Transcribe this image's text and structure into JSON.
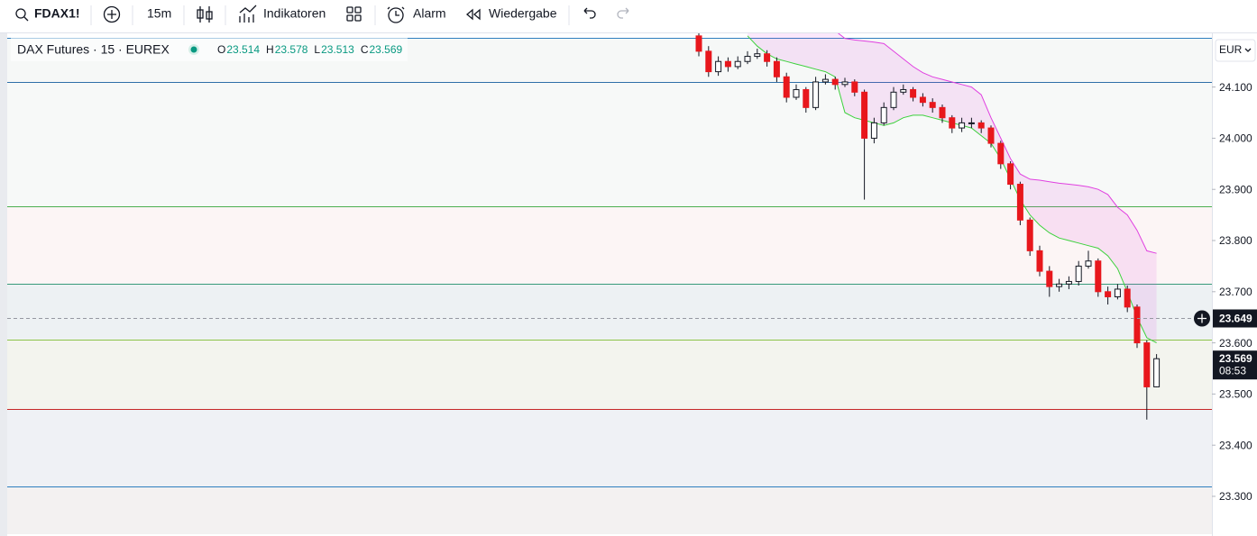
{
  "toolbar": {
    "symbol": "FDAX1!",
    "interval": "15m",
    "indicators": "Indikatoren",
    "alert": "Alarm",
    "replay": "Wiedergabe"
  },
  "legend": {
    "title": "DAX Futures · 15 · EUREX",
    "ohlc": [
      {
        "label": "O",
        "value": "23.514"
      },
      {
        "label": "H",
        "value": "23.578"
      },
      {
        "label": "L",
        "value": "23.513"
      },
      {
        "label": "C",
        "value": "23.569"
      }
    ]
  },
  "currency": "EUR",
  "crosshair": {
    "value": 23649,
    "label": "23.649"
  },
  "last_price": {
    "value": 23569,
    "label": "23.569",
    "countdown": "08:53"
  },
  "chart_data": {
    "type": "candlestick",
    "open": [
      24200,
      24170,
      24130,
      24150,
      24140,
      24150,
      24160,
      24165,
      24150,
      24120,
      24080,
      24095,
      24060,
      24110,
      24115,
      24105,
      24110,
      24090,
      24000,
      24030,
      24060,
      24090,
      24095,
      24080,
      24070,
      24060,
      24040,
      24020,
      24030,
      24030,
      24020,
      23990,
      23950,
      23910,
      23840,
      23780,
      23740,
      23710,
      23715,
      23720,
      23750,
      23760,
      23700,
      23690,
      23705,
      23670,
      23600,
      23514
    ],
    "high": [
      24210,
      24180,
      24160,
      24158,
      24160,
      24170,
      24175,
      24172,
      24158,
      24128,
      24105,
      24100,
      24120,
      24125,
      24120,
      24118,
      24115,
      24095,
      24040,
      24070,
      24100,
      24105,
      24100,
      24088,
      24078,
      24066,
      24045,
      24040,
      24040,
      24035,
      24025,
      23995,
      23955,
      23915,
      23845,
      23790,
      23750,
      23725,
      23730,
      23760,
      23780,
      23765,
      23710,
      23715,
      23712,
      23675,
      23605,
      23578
    ],
    "low": [
      24160,
      24120,
      24122,
      24130,
      24135,
      24145,
      24155,
      24140,
      24110,
      24070,
      24075,
      24050,
      24055,
      24105,
      24095,
      24100,
      24082,
      23880,
      23990,
      24025,
      24055,
      24085,
      24072,
      24062,
      24050,
      24030,
      24010,
      24012,
      24020,
      24010,
      23982,
      23940,
      23900,
      23830,
      23770,
      23730,
      23690,
      23700,
      23705,
      23712,
      23745,
      23690,
      23675,
      23685,
      23660,
      23590,
      23450,
      23513
    ],
    "close": [
      24170,
      24130,
      24150,
      24140,
      24150,
      24160,
      24165,
      24150,
      24120,
      24080,
      24095,
      24060,
      24110,
      24115,
      24105,
      24110,
      24090,
      24000,
      24030,
      24060,
      24090,
      24095,
      24080,
      24070,
      24060,
      24040,
      24020,
      24030,
      24030,
      24020,
      23990,
      23950,
      23910,
      23840,
      23780,
      23740,
      23710,
      23715,
      23720,
      23750,
      23760,
      23700,
      23690,
      23705,
      23670,
      23600,
      23514,
      23569
    ],
    "up_color": "#ffffff",
    "down_color": "#e8171c",
    "upper_band": {
      "color": "#e040e0",
      "values": [
        null,
        null,
        null,
        null,
        null,
        24210,
        24210,
        24210,
        24210,
        24210,
        24210,
        24210,
        24210,
        24210,
        24210,
        24195,
        24192,
        24190,
        24188,
        24185,
        24170,
        24155,
        24140,
        24128,
        24120,
        24115,
        24110,
        24105,
        24100,
        24085,
        24040,
        24000,
        23960,
        23930,
        23920,
        23918,
        23915,
        23912,
        23910,
        23908,
        23905,
        23900,
        23890,
        23865,
        23850,
        23820,
        23780,
        23775
      ]
    },
    "lower_band": {
      "color": "#3cd23c",
      "values": [
        null,
        null,
        null,
        null,
        null,
        24200,
        24180,
        24165,
        24155,
        24150,
        24145,
        24140,
        24135,
        24130,
        24120,
        24050,
        24040,
        24035,
        24030,
        24025,
        24030,
        24040,
        24045,
        24045,
        24040,
        24035,
        24030,
        24025,
        24020,
        24005,
        23990,
        23960,
        23920,
        23880,
        23850,
        23830,
        23815,
        23805,
        23800,
        23795,
        23790,
        23785,
        23770,
        23745,
        23700,
        23650,
        23610,
        23600
      ]
    },
    "levels": [
      24196,
      24110,
      23867,
      23716,
      23607,
      23470,
      23319
    ],
    "level_colors": [
      "#2f7fbf",
      "#2f6fa8",
      "#4caf50",
      "#3a9a7a",
      "#8bc34a",
      "#c62828",
      "#2f7fbf"
    ],
    "ylim": [
      23226,
      24205
    ],
    "yticks": [
      {
        "value": 24100,
        "label": "24.100"
      },
      {
        "value": 24000,
        "label": "24.000"
      },
      {
        "value": 23900,
        "label": "23.900"
      },
      {
        "value": 23800,
        "label": "23.800"
      },
      {
        "value": 23700,
        "label": "23.700"
      },
      {
        "value": 23600,
        "label": "23.600"
      },
      {
        "value": 23500,
        "label": "23.500"
      },
      {
        "value": 23400,
        "label": "23.400"
      },
      {
        "value": 23300,
        "label": "23.300"
      }
    ]
  }
}
